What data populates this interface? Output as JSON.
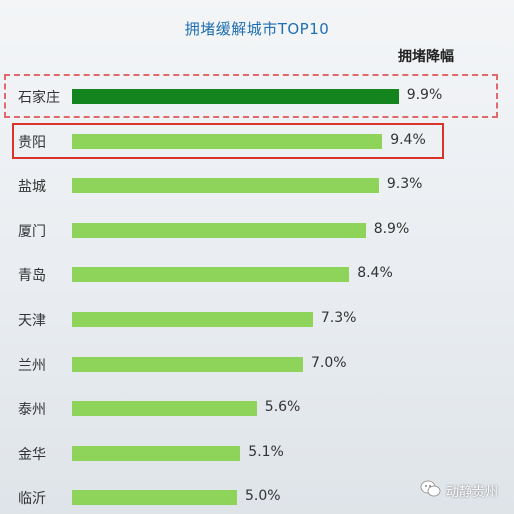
{
  "chart_data": {
    "type": "bar",
    "orientation": "horizontal",
    "title": "拥堵缓解城市TOP10",
    "legend_label": "拥堵降幅",
    "categories": [
      "石家庄",
      "贵阳",
      "盐城",
      "厦门",
      "青岛",
      "天津",
      "兰州",
      "泰州",
      "金华",
      "临沂"
    ],
    "values": [
      9.9,
      9.4,
      9.3,
      8.9,
      8.4,
      7.3,
      7.0,
      5.6,
      5.1,
      5.0
    ],
    "value_labels": [
      "9.9%",
      "9.4%",
      "9.3%",
      "8.9%",
      "8.4%",
      "7.3%",
      "7.0%",
      "5.6%",
      "5.1%",
      "5.0%"
    ],
    "unit": "%",
    "xlim": [
      0,
      10
    ],
    "colors": {
      "top_bar": "#14841e",
      "bar": "#8ed45a",
      "highlight_dashed": "#e06a6a",
      "highlight_solid": "#d9342b",
      "title": "#1f6fb2"
    },
    "highlighted": [
      "石家庄",
      "贵阳"
    ]
  },
  "watermark": {
    "text": "动静贵州",
    "icon": "wechat-icon"
  }
}
